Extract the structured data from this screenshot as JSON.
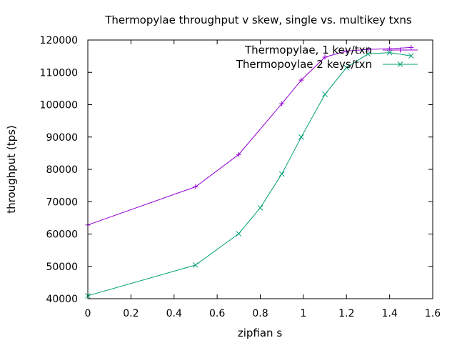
{
  "chart_data": {
    "type": "line",
    "title": "Thermopylae throughput v skew, single vs. multikey txns",
    "xlabel": "zipfian s",
    "ylabel": "throughput (tps)",
    "xlim": [
      0,
      1.6
    ],
    "ylim": [
      40000,
      120000
    ],
    "xticks": [
      0,
      0.2,
      0.4,
      0.6,
      0.8,
      1,
      1.2,
      1.4,
      1.6
    ],
    "xtick_labels": [
      "0",
      "0.2",
      "0.4",
      "0.6",
      "0.8",
      "1",
      "1.2",
      "1.4",
      "1.6"
    ],
    "yticks": [
      40000,
      50000,
      60000,
      70000,
      80000,
      90000,
      100000,
      110000,
      120000
    ],
    "ytick_labels": [
      "40000",
      "50000",
      "60000",
      "70000",
      "80000",
      "90000",
      "100000",
      "110000",
      "120000"
    ],
    "grid": false,
    "legend_position": "top-right",
    "series": [
      {
        "name": "Thermopylae, 1 key/txn",
        "color": "#9400d3",
        "marker": "plus",
        "x": [
          0,
          0.5,
          0.7,
          0.9,
          0.99,
          1.1,
          1.2,
          1.3,
          1.4,
          1.5
        ],
        "y": [
          62800,
          74600,
          84600,
          100300,
          107600,
          114700,
          116600,
          117100,
          117300,
          117700
        ]
      },
      {
        "name": "Thermopoylae 2 keys/txn",
        "color": "#009e73",
        "marker": "cross",
        "x": [
          0,
          0.5,
          0.7,
          0.8,
          0.9,
          0.99,
          1.1,
          1.2,
          1.3,
          1.4,
          1.5
        ],
        "y": [
          40900,
          50400,
          60100,
          68100,
          78600,
          90000,
          103200,
          111500,
          115700,
          116100,
          115100
        ]
      }
    ]
  }
}
